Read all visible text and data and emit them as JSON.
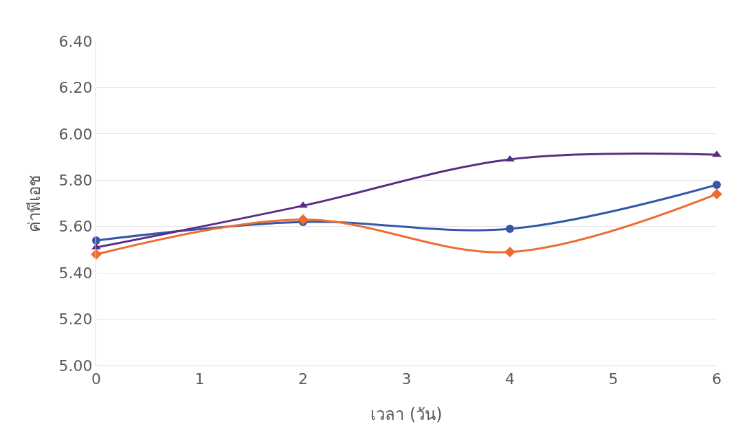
{
  "chart_data": {
    "type": "line",
    "xlabel": "เวลา (วัน)",
    "ylabel": "ค่าพีเอช",
    "x": [
      0,
      2,
      4,
      6
    ],
    "series": [
      {
        "color": "#3457a8",
        "marker": "circle",
        "values": [
          5.54,
          5.62,
          5.59,
          5.78
        ]
      },
      {
        "color": "#ed6c2f",
        "marker": "diamond",
        "values": [
          5.48,
          5.63,
          5.49,
          5.74
        ]
      },
      {
        "color": "#5b2c83",
        "marker": "triangle",
        "values": [
          5.51,
          5.69,
          5.89,
          5.91
        ]
      }
    ],
    "xlim": [
      0,
      6
    ],
    "xticks": [
      0,
      1,
      2,
      3,
      4,
      5,
      6
    ],
    "ylim": [
      5.0,
      6.4
    ],
    "yticks": [
      {
        "value": 5.0,
        "label": "5.00"
      },
      {
        "value": 5.2,
        "label": "5.20"
      },
      {
        "value": 5.4,
        "label": "5.40"
      },
      {
        "value": 5.6,
        "label": "5.60"
      },
      {
        "value": 5.8,
        "label": "5.80"
      },
      {
        "value": 6.0,
        "label": "6.00"
      },
      {
        "value": 6.2,
        "label": "6.20"
      },
      {
        "value": 6.4,
        "label": "6.40"
      }
    ],
    "grid": "y",
    "line_style": "solid"
  }
}
